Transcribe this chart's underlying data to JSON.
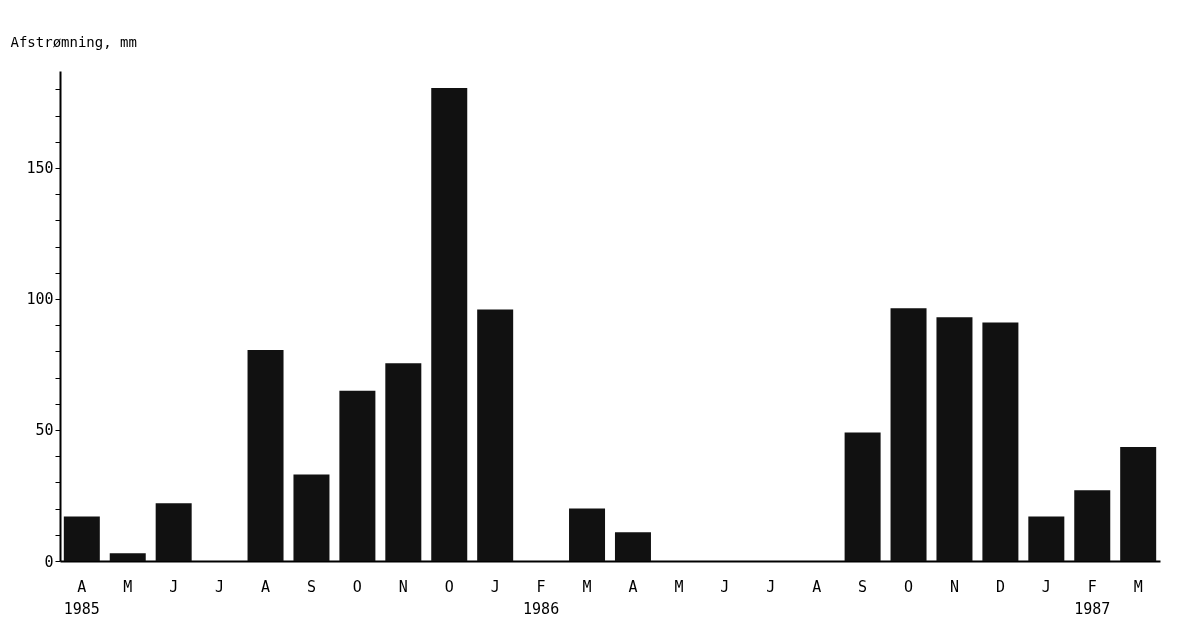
{
  "chart_data": {
    "type": "bar",
    "ylabel": "Afstrømning, mm",
    "categories": [
      "A\n1985",
      "M",
      "J",
      "J",
      "A",
      "S",
      "O",
      "N",
      "O",
      "J",
      "F\n1986",
      "M",
      "A",
      "M",
      "J",
      "J",
      "A",
      "S",
      "O",
      "N",
      "D",
      "J",
      "F\n1987",
      "M"
    ],
    "values": [
      17,
      3,
      22,
      0,
      80.5,
      33,
      65,
      75.5,
      180.5,
      96,
      0,
      20,
      11,
      0,
      0,
      0,
      0,
      49,
      96.5,
      93,
      91,
      17,
      27,
      43.5
    ],
    "color": "#111111",
    "ylim": [
      0,
      187
    ],
    "yticks": [
      0,
      {
        "value": 10,
        "label": null
      },
      {
        "value": 20,
        "label": null
      },
      {
        "value": 30,
        "label": null
      },
      {
        "value": 40,
        "label": null
      },
      50,
      {
        "value": 60,
        "label": null
      },
      {
        "value": 70,
        "label": null
      },
      {
        "value": 80,
        "label": null
      },
      {
        "value": 90,
        "label": null
      },
      100,
      {
        "value": 110,
        "label": null
      },
      {
        "value": 120,
        "label": null
      },
      {
        "value": 130,
        "label": null
      },
      {
        "value": 140,
        "label": null
      },
      150,
      {
        "value": 160,
        "label": null
      },
      {
        "value": 170,
        "label": null
      },
      {
        "value": 180,
        "label": null
      }
    ],
    "grid": false
  }
}
